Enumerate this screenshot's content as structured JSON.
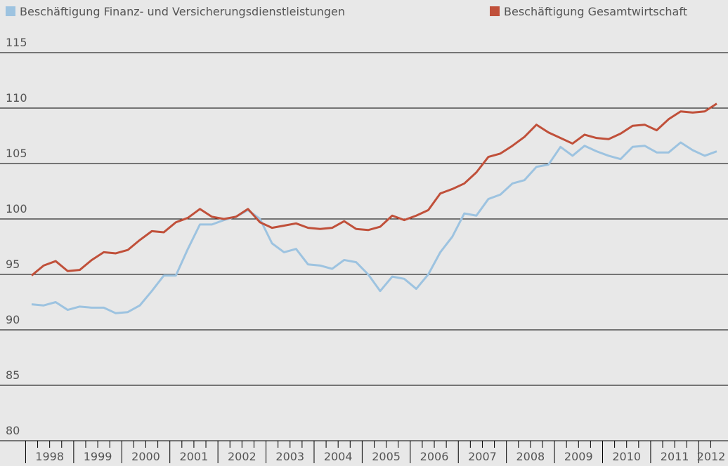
{
  "chart_data": {
    "type": "line",
    "categories": [
      "1998",
      null,
      null,
      null,
      "1999",
      null,
      null,
      null,
      "2000",
      null,
      null,
      null,
      "2001",
      null,
      null,
      null,
      "2002",
      null,
      null,
      null,
      "2003",
      null,
      null,
      null,
      "2004",
      null,
      null,
      null,
      "2005",
      null,
      null,
      null,
      "2006",
      null,
      null,
      null,
      "2007",
      null,
      null,
      null,
      "2008",
      null,
      null,
      null,
      "2009",
      null,
      null,
      null,
      "2010",
      null,
      null,
      null,
      "2011",
      null,
      null,
      null,
      "2012",
      null
    ],
    "series": [
      {
        "name": "Beschäftigung Finanz- und Versicherungsdienstleistungen",
        "color": "#9dc3e0",
        "values": [
          92.3,
          92.2,
          92.5,
          91.8,
          92.1,
          92.0,
          92.0,
          91.5,
          91.6,
          92.2,
          93.5,
          94.9,
          94.9,
          97.3,
          99.5,
          99.5,
          99.9,
          100.2,
          100.8,
          100.0,
          97.8,
          97.0,
          97.3,
          95.9,
          95.8,
          95.5,
          96.3,
          96.1,
          95.0,
          93.5,
          94.8,
          94.6,
          93.7,
          95.0,
          97.0,
          98.4,
          100.5,
          100.3,
          101.8,
          102.2,
          103.2,
          103.5,
          104.7,
          104.9,
          106.5,
          105.7,
          106.6,
          106.1,
          105.7,
          105.4,
          106.5,
          106.6,
          106.0,
          106.0,
          106.9,
          106.2,
          105.7,
          106.1
        ]
      },
      {
        "name": "Beschäftigung Gesamtwirtschaft",
        "color": "#c0503a",
        "values": [
          94.9,
          95.8,
          96.2,
          95.3,
          95.4,
          96.3,
          97.0,
          96.9,
          97.2,
          98.1,
          98.9,
          98.8,
          99.7,
          100.1,
          100.9,
          100.2,
          100.0,
          100.2,
          100.9,
          99.7,
          99.2,
          99.4,
          99.6,
          99.2,
          99.1,
          99.2,
          99.8,
          99.1,
          99.0,
          99.3,
          100.3,
          99.9,
          100.3,
          100.8,
          102.3,
          102.7,
          103.2,
          104.2,
          105.6,
          105.9,
          106.6,
          107.4,
          108.5,
          107.8,
          107.3,
          106.8,
          107.6,
          107.3,
          107.2,
          107.7,
          108.4,
          108.5,
          108.0,
          109.0,
          109.7,
          109.6,
          109.7,
          110.4
        ]
      }
    ],
    "ylim": [
      80,
      115
    ],
    "yticks": [
      80,
      85,
      90,
      95,
      100,
      105,
      110,
      115
    ],
    "grid": true
  }
}
